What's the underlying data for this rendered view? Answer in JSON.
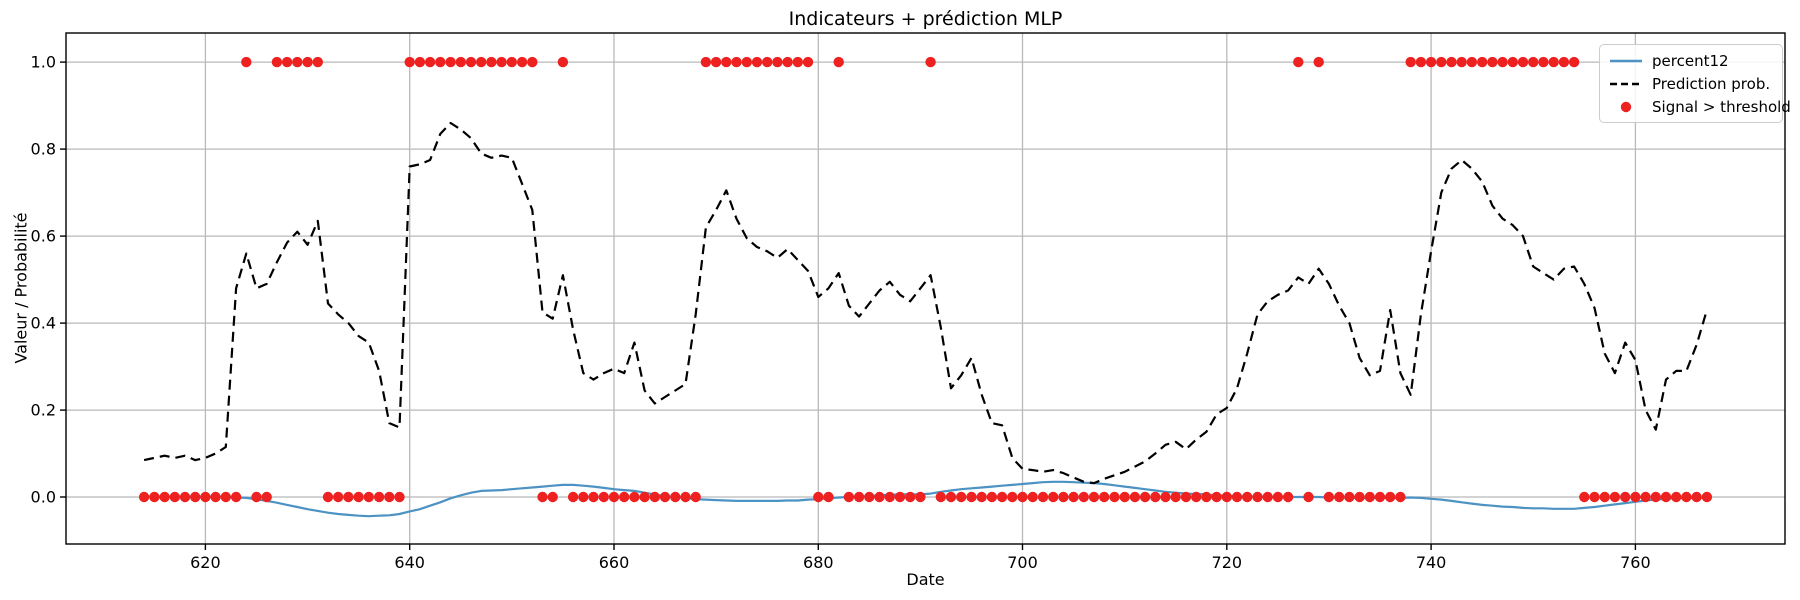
{
  "title": "Indicateurs + prédiction MLP",
  "axes": {
    "x_label": "Date",
    "y_label": "Valeur / Probabilité"
  },
  "colors": {
    "percent12": "#4c92c3",
    "prediction": "#000000",
    "signal": "#ee2121",
    "grid": "#b9b9b9",
    "spine": "#000000",
    "legend_border": "#cccccc",
    "background": "#ffffff"
  },
  "legend": {
    "items": [
      {
        "label": "percent12",
        "type": "line"
      },
      {
        "label": "Prediction prob.",
        "type": "dashed-line"
      },
      {
        "label": "Signal > threshold",
        "type": "dot"
      }
    ]
  },
  "chart_data": {
    "type": "line",
    "title": "Indicateurs + prédiction MLP",
    "xlabel": "Date",
    "ylabel": "Valeur / Probabilité",
    "x_start": 614,
    "x_end": 767,
    "x_step": 1,
    "xlim": [
      606.35,
      774.65
    ],
    "ylim": [
      -0.108,
      1.067
    ],
    "xticks": [
      620,
      640,
      660,
      680,
      700,
      720,
      740,
      760
    ],
    "xtick_labels": [
      "620",
      "640",
      "660",
      "680",
      "700",
      "720",
      "740",
      "760"
    ],
    "yticks": [
      0,
      0.2,
      0.4,
      0.6,
      0.8,
      1.0
    ],
    "ytick_labels": [
      "0.0",
      "0.2",
      "0.4",
      "0.6",
      "0.8",
      "1.0"
    ],
    "grid": true,
    "legend_position": "upper right",
    "series": [
      {
        "name": "percent12",
        "type": "line",
        "color": "#4c92c3",
        "values": [
          0.001,
          0.001,
          0.001,
          0.001,
          0.001,
          0.001,
          0.001,
          0.001,
          0,
          -0.001,
          -0.002,
          -0.005,
          -0.009,
          -0.013,
          -0.018,
          -0.023,
          -0.028,
          -0.032,
          -0.036,
          -0.039,
          -0.041,
          -0.043,
          -0.044,
          -0.043,
          -0.042,
          -0.039,
          -0.033,
          -0.028,
          -0.02,
          -0.012,
          -0.003,
          0.004,
          0.01,
          0.014,
          0.015,
          0.016,
          0.018,
          0.02,
          0.022,
          0.024,
          0.026,
          0.028,
          0.028,
          0.026,
          0.024,
          0.021,
          0.018,
          0.016,
          0.014,
          0.01,
          0.006,
          0.002,
          0,
          -0.002,
          -0.005,
          -0.006,
          -0.007,
          -0.008,
          -0.009,
          -0.009,
          -0.009,
          -0.009,
          -0.009,
          -0.008,
          -0.008,
          -0.006,
          -0.005,
          -0.003,
          -0.001,
          0,
          0.001,
          0.002,
          0.004,
          0.005,
          0.006,
          0.006,
          0.006,
          0.008,
          0.012,
          0.015,
          0.018,
          0.02,
          0.022,
          0.024,
          0.026,
          0.028,
          0.03,
          0.032,
          0.034,
          0.035,
          0.035,
          0.034,
          0.033,
          0.032,
          0.03,
          0.027,
          0.024,
          0.021,
          0.018,
          0.015,
          0.012,
          0.01,
          0.008,
          0.007,
          0.006,
          0.004,
          0.003,
          0.002,
          0.001,
          0.001,
          0,
          0,
          0,
          0,
          0,
          0,
          -0.001,
          -0.001,
          -0.001,
          -0.002,
          -0.002,
          -0.002,
          -0.002,
          -0.002,
          -0.001,
          -0.002,
          -0.004,
          -0.006,
          -0.009,
          -0.012,
          -0.015,
          -0.018,
          -0.02,
          -0.022,
          -0.023,
          -0.025,
          -0.026,
          -0.026,
          -0.027,
          -0.027,
          -0.027,
          -0.025,
          -0.023,
          -0.02,
          -0.017,
          -0.014,
          -0.011,
          -0.008,
          -0.006,
          -0.004,
          -0.003,
          -0.002,
          -0.002,
          -0.001
        ]
      },
      {
        "name": "Prediction prob.",
        "type": "line-dashed",
        "color": "#000000",
        "values": [
          0.085,
          0.09,
          0.095,
          0.09,
          0.095,
          0.085,
          0.09,
          0.1,
          0.115,
          0.48,
          0.56,
          0.48,
          0.49,
          0.54,
          0.585,
          0.61,
          0.58,
          0.635,
          0.445,
          0.42,
          0.4,
          0.37,
          0.355,
          0.29,
          0.17,
          0.16,
          0.76,
          0.765,
          0.775,
          0.835,
          0.86,
          0.845,
          0.825,
          0.79,
          0.78,
          0.785,
          0.78,
          0.72,
          0.66,
          0.425,
          0.41,
          0.51,
          0.385,
          0.285,
          0.27,
          0.285,
          0.295,
          0.285,
          0.355,
          0.245,
          0.215,
          0.23,
          0.245,
          0.26,
          0.42,
          0.62,
          0.66,
          0.705,
          0.64,
          0.595,
          0.575,
          0.565,
          0.55,
          0.57,
          0.545,
          0.52,
          0.46,
          0.48,
          0.515,
          0.44,
          0.415,
          0.445,
          0.475,
          0.495,
          0.465,
          0.45,
          0.48,
          0.51,
          0.39,
          0.25,
          0.28,
          0.32,
          0.235,
          0.17,
          0.165,
          0.09,
          0.065,
          0.062,
          0.058,
          0.062,
          0.055,
          0.045,
          0.035,
          0.032,
          0.042,
          0.05,
          0.058,
          0.07,
          0.082,
          0.1,
          0.12,
          0.127,
          0.11,
          0.132,
          0.15,
          0.19,
          0.205,
          0.25,
          0.33,
          0.42,
          0.45,
          0.465,
          0.475,
          0.505,
          0.49,
          0.525,
          0.49,
          0.44,
          0.4,
          0.32,
          0.28,
          0.29,
          0.43,
          0.285,
          0.235,
          0.42,
          0.565,
          0.7,
          0.755,
          0.775,
          0.755,
          0.725,
          0.67,
          0.64,
          0.625,
          0.6,
          0.53,
          0.515,
          0.5,
          0.525,
          0.53,
          0.49,
          0.435,
          0.33,
          0.285,
          0.355,
          0.315,
          0.2,
          0.155,
          0.27,
          0.29,
          0.29,
          0.35,
          0.43
        ]
      },
      {
        "name": "Signal > threshold",
        "type": "scatter-binary",
        "color": "#ee2121",
        "values": [
          0,
          0,
          0,
          0,
          0,
          0,
          0,
          0,
          0,
          0,
          1,
          0,
          0,
          1,
          1,
          1,
          1,
          1,
          0,
          0,
          0,
          0,
          0,
          0,
          0,
          0,
          1,
          1,
          1,
          1,
          1,
          1,
          1,
          1,
          1,
          1,
          1,
          1,
          1,
          0,
          0,
          1,
          0,
          0,
          0,
          0,
          0,
          0,
          0,
          0,
          0,
          0,
          0,
          0,
          0,
          1,
          1,
          1,
          1,
          1,
          1,
          1,
          1,
          1,
          1,
          1,
          0,
          0,
          1,
          0,
          0,
          0,
          0,
          0,
          0,
          0,
          0,
          1,
          0,
          0,
          0,
          0,
          0,
          0,
          0,
          0,
          0,
          0,
          0,
          0,
          0,
          0,
          0,
          0,
          0,
          0,
          0,
          0,
          0,
          0,
          0,
          0,
          0,
          0,
          0,
          0,
          0,
          0,
          0,
          0,
          0,
          0,
          0,
          1,
          0,
          1,
          0,
          0,
          0,
          0,
          0,
          0,
          0,
          0,
          1,
          1,
          1,
          1,
          1,
          1,
          1,
          1,
          1,
          1,
          1,
          1,
          1,
          1,
          1,
          1,
          1,
          0,
          0,
          0,
          0,
          0,
          0,
          0,
          0,
          0,
          0,
          0,
          0,
          0
        ]
      }
    ]
  }
}
